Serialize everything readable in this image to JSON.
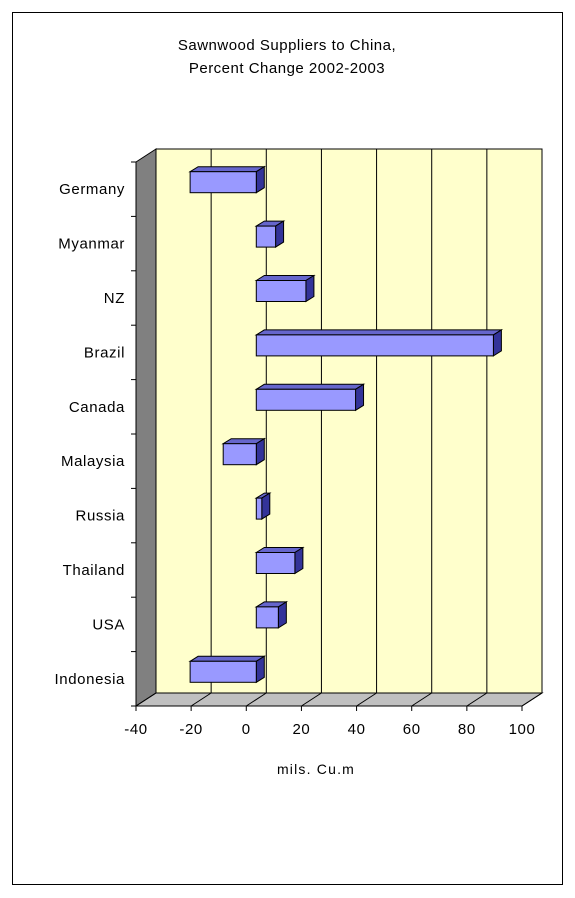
{
  "chart_data": {
    "type": "bar",
    "orientation": "horizontal",
    "title_lines": [
      "Sawnwood Suppliers to China,",
      "Percent Change 2002-2003"
    ],
    "xlabel": "mils. Cu.m",
    "ylabel": "",
    "categories": [
      "Germany",
      "Myanmar",
      "NZ",
      "Brazil",
      "Canada",
      "Malaysia",
      "Russia",
      "Thailand",
      "USA",
      "Indonesia"
    ],
    "values": [
      -24,
      7,
      18,
      86,
      36,
      -12,
      2,
      14,
      8,
      -24
    ],
    "xlim": [
      -40,
      100
    ],
    "xticks": [
      "-40",
      "-20",
      "0",
      "20",
      "40",
      "60",
      "80",
      "100"
    ],
    "grid": true,
    "legend": "none",
    "colors": {
      "plot_bg": "#ffffcc",
      "bar_front": "#9999ff",
      "bar_top": "#6666cc",
      "bar_side": "#333399",
      "wall_side": "#808080",
      "floor": "#c0c0c0"
    }
  }
}
